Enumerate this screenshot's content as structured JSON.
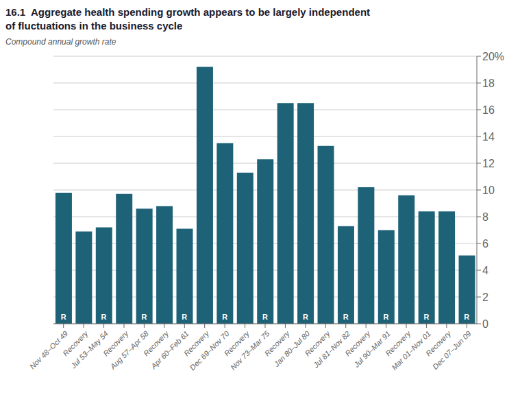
{
  "chart_data": {
    "type": "bar",
    "title": "16.1  Aggregate health spending growth appears to be largely independent\nof fluctuations in the business cycle",
    "subtitle": "Compound annual growth rate",
    "categories": [
      "Nov 48–Oct 49",
      "Recovery",
      "Jul 53–May 54",
      "Recovery",
      "Aug 57–Apr 58",
      "Recovery",
      "Apr 60–Feb 61",
      "Recovery",
      "Dec 69–Nov 70",
      "Recovery",
      "Nov 73–Mar 75",
      "Recovery",
      "Jan 80–Jul 80",
      "Recovery",
      "Jul 81–Nov 82",
      "Recovery",
      "Jul 90–Mar 91",
      "Recovery",
      "Mar 01–Nov 01",
      "Recovery",
      "Dec 07–Jun 09"
    ],
    "values": [
      9.8,
      6.9,
      7.2,
      9.7,
      8.6,
      8.8,
      7.1,
      19.2,
      13.5,
      11.3,
      12.3,
      16.5,
      16.5,
      13.3,
      7.3,
      10.2,
      7.0,
      9.6,
      8.4,
      8.4,
      5.1
    ],
    "color": "#1e6278",
    "ylim": [
      0,
      20
    ],
    "yticks": [
      0,
      2,
      4,
      6,
      8,
      10,
      12,
      14,
      16,
      18,
      {
        "value": 20,
        "label": "20%"
      }
    ],
    "grid": true,
    "annotations": [
      {
        "text": "R",
        "x": "Nov 48–Oct 49",
        "color": "#ffffff"
      },
      {
        "text": "R",
        "x": "Jul 53–May 54",
        "color": "#ffffff"
      },
      {
        "text": "R",
        "x": "Aug 57–Apr 58",
        "color": "#ffffff"
      },
      {
        "text": "R",
        "x": "Apr 60–Feb 61",
        "color": "#ffffff"
      },
      {
        "text": "R",
        "x": "Dec 69–Nov 70",
        "color": "#ffffff"
      },
      {
        "text": "R",
        "x": "Nov 73–Mar 75",
        "color": "#ffffff"
      },
      {
        "text": "R",
        "x": "Jan 80–Jul 80",
        "color": "#ffffff"
      },
      {
        "text": "R",
        "x": "Jul 81–Nov 82",
        "color": "#ffffff"
      },
      {
        "text": "R",
        "x": "Jul 90–Mar 91",
        "color": "#ffffff"
      },
      {
        "text": "R",
        "x": "Mar 01–Nov 01",
        "color": "#ffffff"
      },
      {
        "text": "R",
        "x": "Dec 07–Jun 09",
        "color": "#ffffff"
      }
    ]
  }
}
